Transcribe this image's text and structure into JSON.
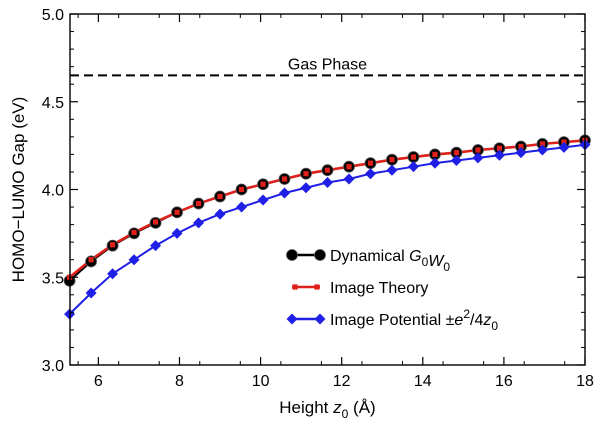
{
  "chart_data": {
    "type": "line",
    "title": "",
    "xlabel": {
      "pre": "Height ",
      "var": "z",
      "sub": "0",
      "post": " (Å)"
    },
    "ylabel": "HOMO−LUMO Gap (eV)",
    "xlim": [
      5.3,
      18
    ],
    "ylim": [
      3.0,
      5.0
    ],
    "xticks": [
      6,
      8,
      10,
      12,
      14,
      16,
      18
    ],
    "xtick_labels": [
      "6",
      "8",
      "10",
      "12",
      "14",
      "16",
      "18"
    ],
    "yticks": [
      3.0,
      3.5,
      4.0,
      4.5,
      5.0
    ],
    "ytick_labels": [
      "3.0",
      "3.5",
      "4.0",
      "4.5",
      "5.0"
    ],
    "grid": false,
    "legend_position": "lower-right",
    "reference_line": {
      "label": "Gas Phase",
      "y": 4.65,
      "color": "#000000",
      "style": "dashed"
    },
    "x": [
      5.29,
      5.82,
      6.35,
      6.88,
      7.41,
      7.94,
      8.47,
      9.0,
      9.53,
      10.06,
      10.59,
      11.12,
      11.65,
      12.18,
      12.71,
      13.24,
      13.77,
      14.3,
      14.83,
      15.36,
      15.89,
      16.42,
      16.95,
      17.48,
      18.0
    ],
    "series": [
      {
        "name": "Dynamical G0W0",
        "legend": {
          "pre": "Dynamical ",
          "parts": [
            [
              "G",
              "0"
            ],
            [
              "W",
              "0"
            ]
          ]
        },
        "color": "#000000",
        "marker": "circle",
        "values": [
          3.48,
          3.59,
          3.68,
          3.75,
          3.81,
          3.87,
          3.92,
          3.96,
          4.0,
          4.03,
          4.06,
          4.09,
          4.11,
          4.13,
          4.15,
          4.17,
          4.185,
          4.2,
          4.21,
          4.225,
          4.235,
          4.245,
          4.26,
          4.27,
          4.28
        ]
      },
      {
        "name": "Image Theory",
        "legend": {
          "pre": "Image Theory"
        },
        "color": "#e0201b",
        "marker": "square",
        "values": [
          3.5,
          3.6,
          3.685,
          3.755,
          3.815,
          3.87,
          3.92,
          3.96,
          4.0,
          4.03,
          4.06,
          4.09,
          4.11,
          4.13,
          4.15,
          4.17,
          4.185,
          4.2,
          4.21,
          4.225,
          4.235,
          4.245,
          4.26,
          4.27,
          4.28
        ]
      },
      {
        "name": "Image Potential ±e²/4z0",
        "legend": {
          "pre": "Image Potential ±",
          "formula": true
        },
        "color": "#1f1fe6",
        "marker": "diamond",
        "values": [
          3.29,
          3.41,
          3.52,
          3.6,
          3.68,
          3.75,
          3.81,
          3.86,
          3.9,
          3.94,
          3.98,
          4.01,
          4.04,
          4.06,
          4.09,
          4.11,
          4.13,
          4.15,
          4.165,
          4.18,
          4.195,
          4.21,
          4.225,
          4.24,
          4.255
        ]
      }
    ]
  }
}
